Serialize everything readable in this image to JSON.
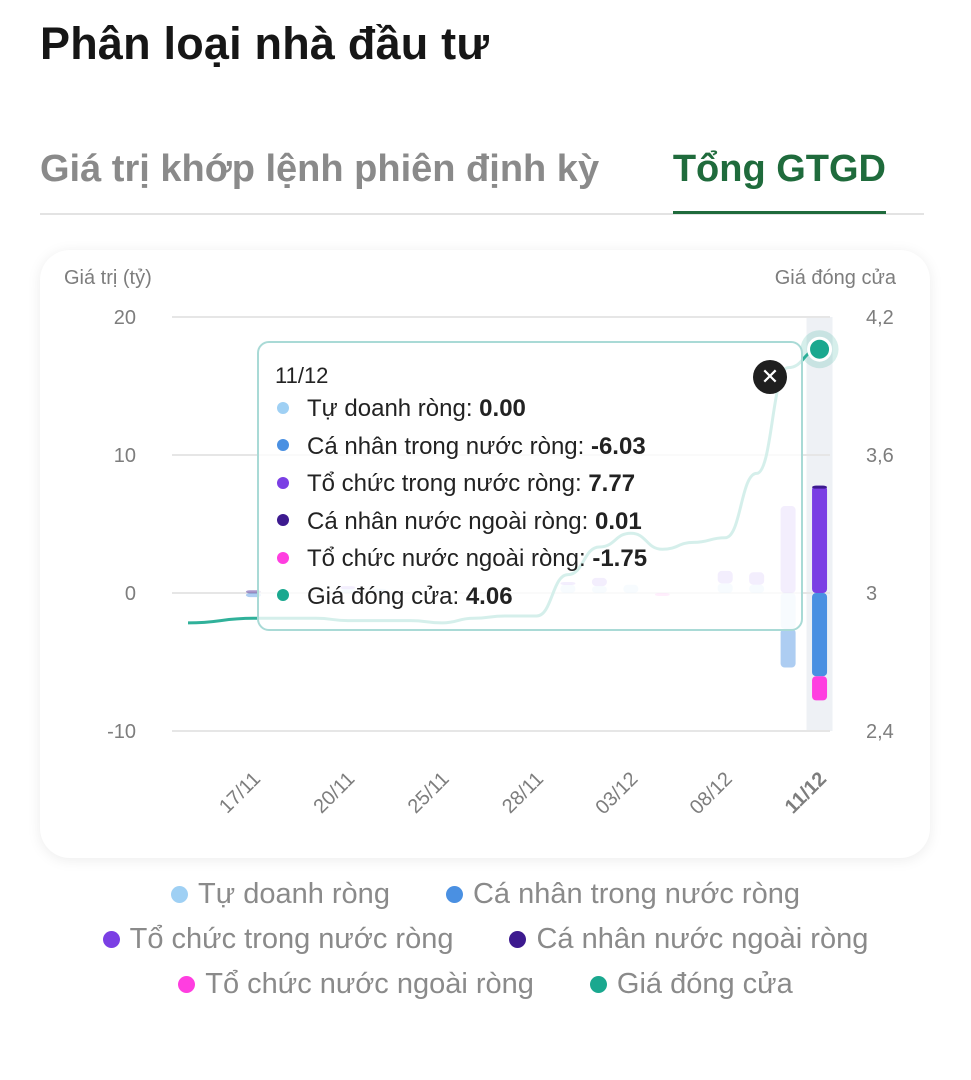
{
  "page_title": "Phân loại nhà đầu tư",
  "tabs": [
    {
      "label": "Giá trị khớp lệnh phiên định kỳ",
      "active": false
    },
    {
      "label": "Tổng GTGD",
      "active": true
    }
  ],
  "colors": {
    "tu_doanh": "#9fd0f4",
    "ca_nhan_trong_nuoc": "#4a90e2",
    "to_chuc_trong_nuoc": "#7b3fe4",
    "ca_nhan_nuoc_ngoai": "#3d1a8f",
    "to_chuc_nuoc_ngoai": "#ff3ee0",
    "gia_dong_cua": "#1aa88f",
    "accent_tab": "#1f6b3c"
  },
  "chart_data": {
    "type": "bar",
    "left_axis_label": "Giá trị (tỷ)",
    "right_axis_label": "Giá đóng cửa",
    "left_ticks": [
      "20",
      "10",
      "0",
      "-10"
    ],
    "right_ticks": [
      "4,2",
      "3,6",
      "3",
      "2,4"
    ],
    "ylim_left": [
      -10,
      20
    ],
    "ylim_right": [
      2.4,
      4.2
    ],
    "x_ticks": [
      "17/11",
      "20/11",
      "25/11",
      "28/11",
      "03/12",
      "08/12",
      "11/12"
    ],
    "x_tick_index": [
      1,
      4,
      7,
      10,
      13,
      16,
      19
    ],
    "series": [
      {
        "name": "Tự doanh ròng",
        "color": "#9fd0f4",
        "values": [
          0,
          0,
          0,
          0,
          0.3,
          0.3,
          0,
          0,
          0,
          0,
          0,
          0.6,
          0.5,
          0.6,
          0,
          0,
          0.7,
          0.6,
          -2.6,
          0.0
        ]
      },
      {
        "name": "Cá nhân trong nước ròng",
        "color": "#4a90e2",
        "values": [
          0,
          -0.3,
          0,
          0,
          0,
          0,
          0,
          0,
          0,
          0,
          0,
          0,
          0,
          0,
          0,
          0,
          0,
          0,
          -2.8,
          -6.03
        ]
      },
      {
        "name": "Tổ chức trong nước ròng",
        "color": "#7b3fe4",
        "values": [
          0,
          0,
          0,
          0,
          0.2,
          0,
          0,
          0,
          0,
          0,
          0,
          0.2,
          0.6,
          0,
          0,
          0,
          0.9,
          0.9,
          6.3,
          7.77
        ]
      },
      {
        "name": "Cá nhân nước ngoài ròng",
        "color": "#3d1a8f",
        "values": [
          0,
          0.2,
          0,
          0,
          0,
          0,
          0,
          0,
          0,
          0,
          0,
          0,
          0,
          0,
          0,
          0,
          0,
          0,
          0,
          0.01
        ]
      },
      {
        "name": "Tổ chức nước ngoài ròng",
        "color": "#ff3ee0",
        "values": [
          0,
          0,
          0,
          0,
          0,
          0,
          0,
          0,
          0,
          0,
          0,
          0,
          0,
          0,
          -0.2,
          0,
          0,
          0,
          0,
          -1.75
        ]
      },
      {
        "name": "Giá đóng cửa",
        "color": "#1aa88f",
        "type": "line",
        "values": [
          2.87,
          2.89,
          2.89,
          2.89,
          2.88,
          2.88,
          2.88,
          2.87,
          2.89,
          2.9,
          2.9,
          3.08,
          3.2,
          3.26,
          3.19,
          3.22,
          3.24,
          3.52,
          3.98,
          4.06
        ]
      }
    ],
    "selected_index": 19,
    "tooltip": {
      "date": "11/12",
      "rows": [
        {
          "label": "Tự doanh ròng:",
          "value": "0.00",
          "color": "#9fd0f4"
        },
        {
          "label": "Cá nhân trong nước ròng:",
          "value": "-6.03",
          "color": "#4a90e2"
        },
        {
          "label": "Tổ chức trong nước ròng:",
          "value": "7.77",
          "color": "#7b3fe4"
        },
        {
          "label": "Cá nhân nước ngoài ròng:",
          "value": "0.01",
          "color": "#3d1a8f"
        },
        {
          "label": "Tổ chức nước ngoài ròng:",
          "value": "-1.75",
          "color": "#ff3ee0"
        },
        {
          "label": "Giá đóng cửa:",
          "value": "4.06",
          "color": "#1aa88f"
        }
      ],
      "close_symbol": "✕"
    }
  },
  "legend": [
    {
      "label": "Tự doanh ròng",
      "color": "#9fd0f4"
    },
    {
      "label": "Cá nhân trong nước ròng",
      "color": "#4a90e2"
    },
    {
      "label": "Tổ chức trong nước ròng",
      "color": "#7b3fe4"
    },
    {
      "label": "Cá nhân nước ngoài ròng",
      "color": "#3d1a8f"
    },
    {
      "label": "Tổ chức nước ngoài ròng",
      "color": "#ff3ee0"
    },
    {
      "label": "Giá đóng cửa",
      "color": "#1aa88f"
    }
  ]
}
